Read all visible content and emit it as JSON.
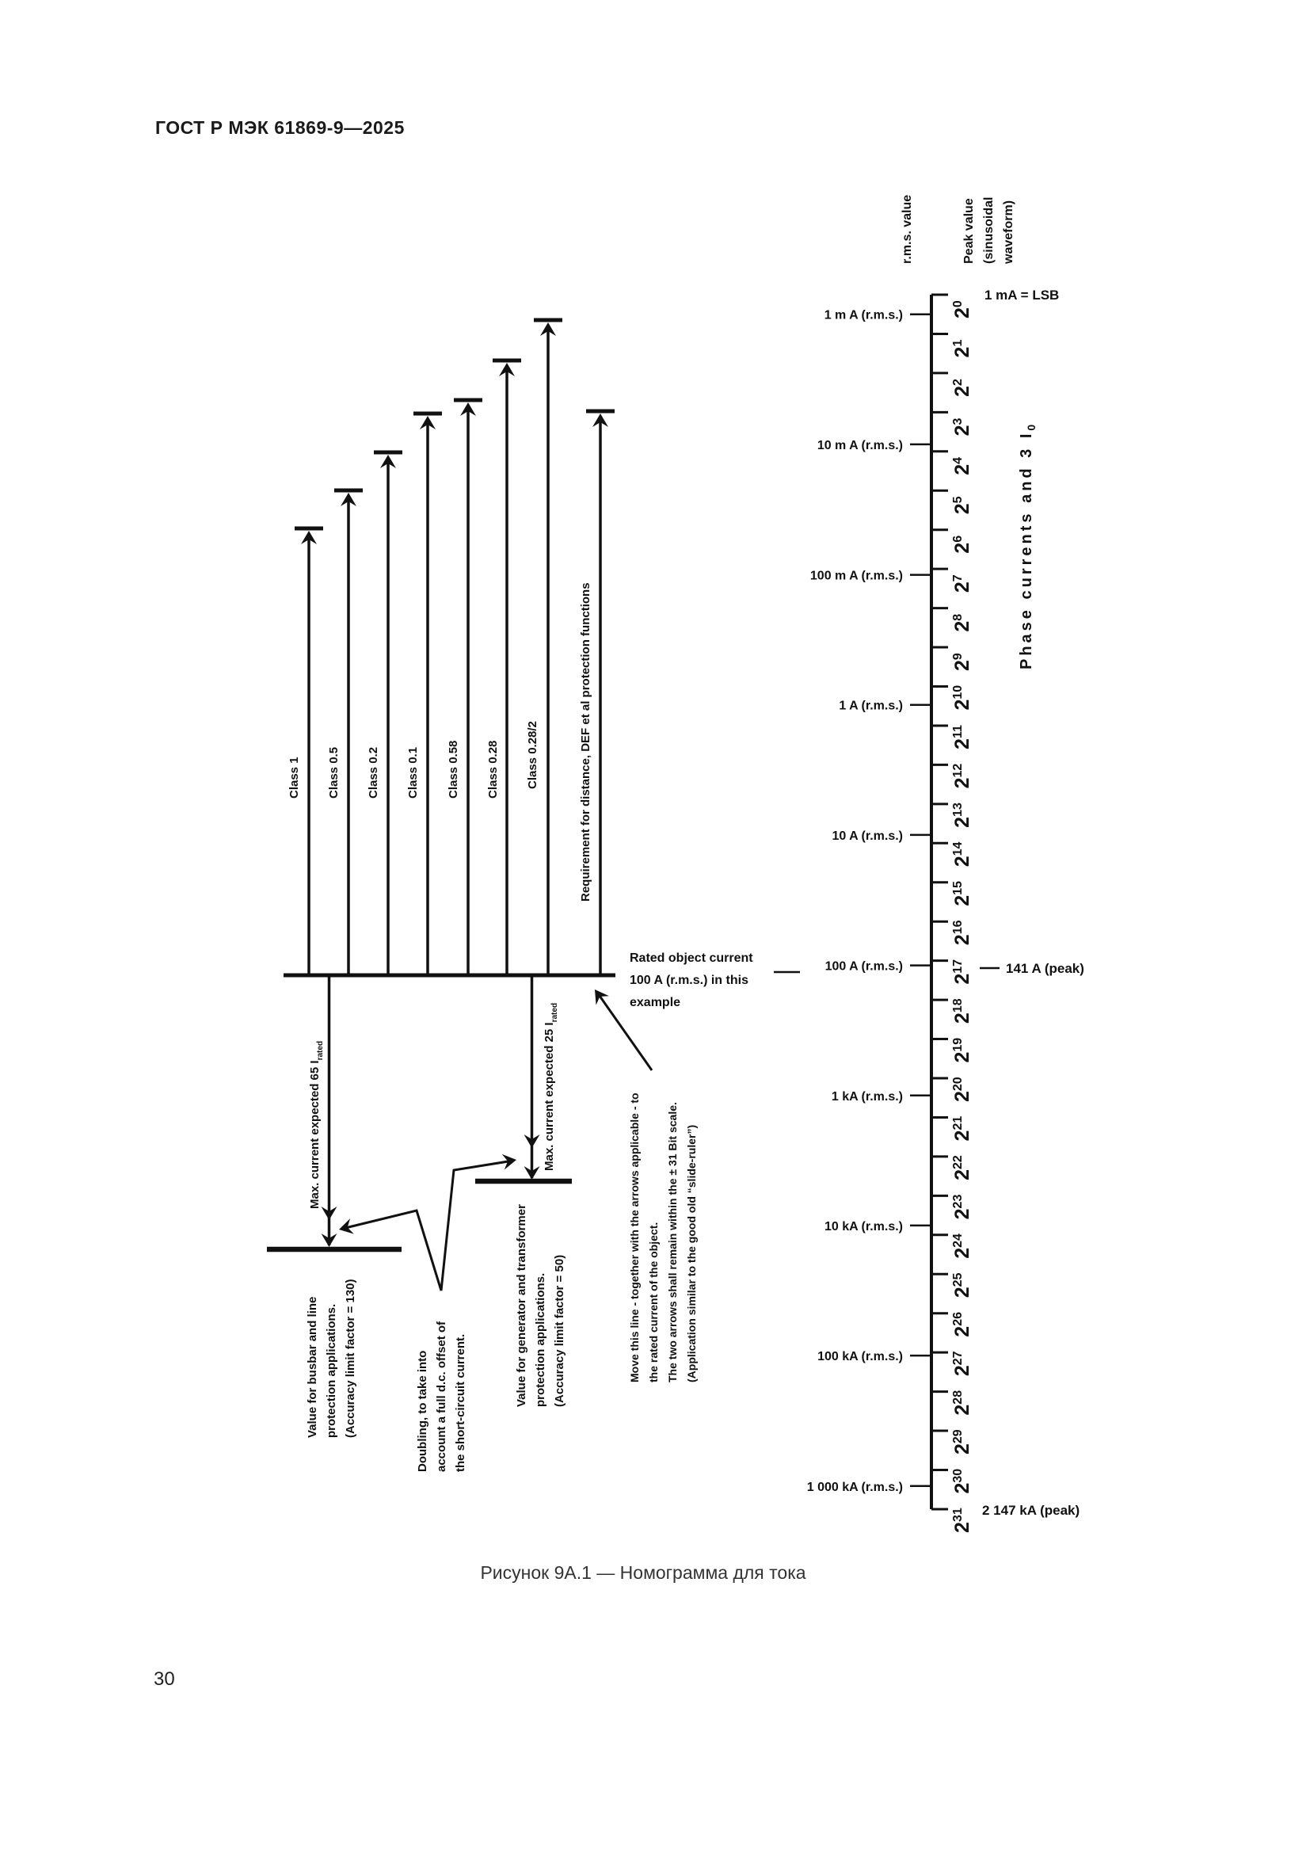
{
  "page": {
    "header": "ГОСТ Р МЭК 61869-9—2025",
    "caption": "Рисунок 9А.1 — Номограмма для тока",
    "page_number": "30"
  },
  "figure": {
    "axis": {
      "rms_title": "r.m.s. value",
      "peak_title_lines": [
        "Peak value",
        "(sinusoidal",
        "waveform)"
      ],
      "lsb_note": "1 mA = LSB",
      "phase_axis_label": "Phase currents and 3 I",
      "phase_axis_label_sub": "0",
      "power_base": "2",
      "power_exponents": [
        0,
        1,
        2,
        3,
        4,
        5,
        6,
        7,
        8,
        9,
        10,
        11,
        12,
        13,
        14,
        15,
        16,
        17,
        18,
        19,
        20,
        21,
        22,
        23,
        24,
        25,
        26,
        27,
        28,
        29,
        30,
        31
      ],
      "rms_ticks": [
        {
          "label": "1 m A (r.m.s.)",
          "power": 0.5
        },
        {
          "label": "10 m A (r.m.s.)",
          "power": 3.82
        },
        {
          "label": "100 m A (r.m.s.)",
          "power": 7.15
        },
        {
          "label": "1 A (r.m.s.)",
          "power": 10.47
        },
        {
          "label": "10 A (r.m.s.)",
          "power": 13.79
        },
        {
          "label": "100 A (r.m.s.)",
          "power": 17.12
        },
        {
          "label": "1 kA (r.m.s.)",
          "power": 20.44
        },
        {
          "label": "10 kA (r.m.s.)",
          "power": 23.76
        },
        {
          "label": "100 kA (r.m.s.)",
          "power": 27.08
        },
        {
          "label": "1 000 kA (r.m.s.)",
          "power": 30.41
        }
      ],
      "peak_141": "141 A (peak)",
      "peak_2147": "2 147 kA (peak)"
    },
    "class_arrows": [
      {
        "label": "Class 1"
      },
      {
        "label": "Class 0.5"
      },
      {
        "label": "Class 0.2"
      },
      {
        "label": "Class 0.1"
      },
      {
        "label": "Class 0.58"
      },
      {
        "label": "Class 0.28"
      },
      {
        "label": "Class 0.28/2"
      },
      {
        "label": "Requirement for distance, DEF et al protection functions"
      }
    ],
    "rated_note_lines": [
      "Rated object current",
      "100 A (r.m.s.) in this",
      "example"
    ],
    "max65": {
      "text": "Max. current expected 65 I",
      "sub": "rated"
    },
    "max25": {
      "text": "Max. current expected 25 I",
      "sub": "rated"
    },
    "note_busbar": [
      "Value for busbar and line",
      "protection applications.",
      "(Accuracy limit factor = 130)"
    ],
    "note_doubling": [
      "Doubling, to take into",
      "account a full d.c. offset of",
      "the short-circuit current."
    ],
    "note_generator": [
      "Value for generator and transformer",
      "protection applications.",
      "(Accuracy limit factor = 50)"
    ],
    "note_move": [
      "Move this line - together with the arrows applicable - to",
      "the rated current of the object.",
      "The two arrows shall remain within the ± 31 Bit scale.",
      "(Application similar to the good old “slide-ruler”)"
    ]
  }
}
